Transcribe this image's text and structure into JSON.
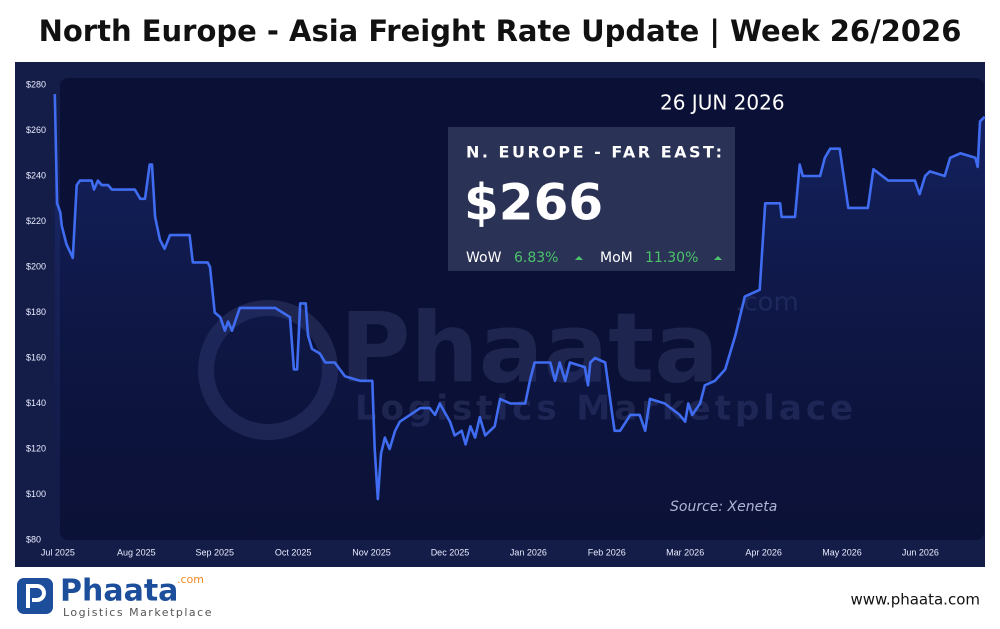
{
  "chart_data": {
    "type": "line",
    "title": "North Europe - Asia Freight Rate Update | Week 26/2026",
    "xlim": [
      -0.05,
      11.83
    ],
    "xticks": [
      {
        "value": 0,
        "label": "Jul 2025"
      },
      {
        "value": 1,
        "label": "Aug 2025"
      },
      {
        "value": 2,
        "label": "Sep 2025"
      },
      {
        "value": 3,
        "label": "Oct 2025"
      },
      {
        "value": 4,
        "label": "Nov 2025"
      },
      {
        "value": 5,
        "label": "Dec 2025"
      },
      {
        "value": 6,
        "label": "Jan 2026"
      },
      {
        "value": 7,
        "label": "Feb 2026"
      },
      {
        "value": 8,
        "label": "Mar 2026"
      },
      {
        "value": 9,
        "label": "Apr 2026"
      },
      {
        "value": 10,
        "label": "May 2026"
      },
      {
        "value": 11,
        "label": "Jun 2026"
      }
    ],
    "ylim": [
      80,
      280
    ],
    "yticks": [
      {
        "value": 80,
        "label": "$80"
      },
      {
        "value": 100,
        "label": "$100"
      },
      {
        "value": 120,
        "label": "$120"
      },
      {
        "value": 140,
        "label": "$140"
      },
      {
        "value": 160,
        "label": "$160"
      },
      {
        "value": 180,
        "label": "$180"
      },
      {
        "value": 200,
        "label": "$200"
      },
      {
        "value": 220,
        "label": "$220"
      },
      {
        "value": 240,
        "label": "$240"
      },
      {
        "value": 260,
        "label": "$260"
      },
      {
        "value": 280,
        "label": "$280"
      }
    ],
    "x": [
      -0.04,
      -0.01,
      0.03,
      0.05,
      0.11,
      0.19,
      0.24,
      0.28,
      0.43,
      0.46,
      0.51,
      0.56,
      0.64,
      0.69,
      0.98,
      1.05,
      1.11,
      1.17,
      1.2,
      1.24,
      1.3,
      1.36,
      1.43,
      1.68,
      1.72,
      1.91,
      1.94,
      2.0,
      2.07,
      2.13,
      2.17,
      2.22,
      2.32,
      2.77,
      2.96,
      3.01,
      3.05,
      3.09,
      3.16,
      3.19,
      3.24,
      3.34,
      3.41,
      3.53,
      3.66,
      3.85,
      4.01,
      4.04,
      4.08,
      4.12,
      4.17,
      4.23,
      4.3,
      4.36,
      4.49,
      4.62,
      4.74,
      4.81,
      4.87,
      5.0,
      5.06,
      5.15,
      5.2,
      5.26,
      5.32,
      5.38,
      5.45,
      5.57,
      5.64,
      5.77,
      5.96,
      6.02,
      6.08,
      6.28,
      6.34,
      6.4,
      6.47,
      6.53,
      6.72,
      6.76,
      6.79,
      6.85,
      6.98,
      7.07,
      7.1,
      7.17,
      7.3,
      7.42,
      7.49,
      7.55,
      7.74,
      7.93,
      8.0,
      8.04,
      8.09,
      8.19,
      8.25,
      8.38,
      8.51,
      8.64,
      8.76,
      8.95,
      9.02,
      9.21,
      9.23,
      9.4,
      9.46,
      9.5,
      9.72,
      9.78,
      9.85,
      9.97,
      10.08,
      10.33,
      10.4,
      10.59,
      10.93,
      10.99,
      11.06,
      11.12,
      11.31,
      11.38,
      11.51,
      11.7,
      11.73,
      11.76,
      11.82
    ],
    "series": [
      {
        "color": "#3f6cf0",
        "values": [
          276,
          228,
          224,
          218,
          210,
          204,
          236,
          238,
          238,
          234,
          238,
          236,
          236,
          234,
          234,
          230,
          230,
          245,
          245,
          222,
          212,
          208,
          214,
          214,
          202,
          202,
          200,
          180,
          178,
          172,
          176,
          172,
          182,
          182,
          178,
          155,
          155,
          184,
          184,
          170,
          164,
          162,
          158,
          158,
          152,
          150,
          150,
          120,
          98,
          118,
          125,
          120,
          128,
          132,
          135,
          138,
          138,
          135,
          140,
          132,
          126,
          128,
          122,
          130,
          125,
          134,
          126,
          130,
          142,
          140,
          140,
          150,
          158,
          158,
          150,
          158,
          150,
          158,
          156,
          148,
          158,
          160,
          158,
          135,
          128,
          128,
          135,
          135,
          128,
          142,
          140,
          135,
          132,
          140,
          135,
          140,
          148,
          150,
          155,
          170,
          187,
          190,
          228,
          228,
          222,
          222,
          245,
          240,
          240,
          248,
          252,
          252,
          226,
          226,
          243,
          238,
          238,
          232,
          240,
          242,
          240,
          248,
          250,
          248,
          244,
          264,
          266
        ]
      }
    ],
    "annotation": {
      "date": "26 JUN 2026",
      "label": "N. EUROPE - FAR EAST:",
      "value": "$266",
      "wow_label": "WoW",
      "wow": "6.83%",
      "mom_label": "MoM",
      "mom": "11.30%"
    },
    "watermark": {
      "name": "Phaata",
      "suffix": ".com",
      "tagline": "Logistics Marketplace"
    },
    "source": "Source: Xeneta"
  },
  "footer": {
    "logo": "Phaata",
    "logo_suffix": ".com",
    "tagline": "Logistics Marketplace",
    "url": "www.phaata.com"
  }
}
